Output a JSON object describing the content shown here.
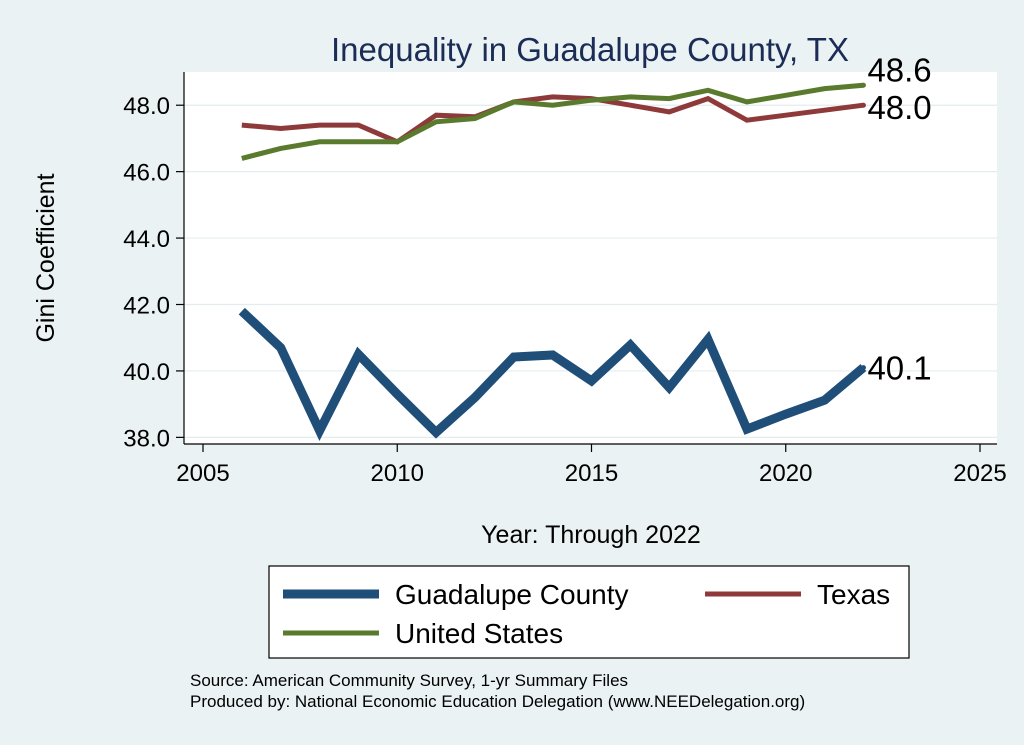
{
  "chart_data": {
    "type": "line",
    "title": "Inequality in Guadalupe County, TX",
    "xlabel": "Year: Through 2022",
    "ylabel": "Gini Coefficient",
    "xlim": [
      2005,
      2025
    ],
    "ylim": [
      37.8,
      49.0
    ],
    "x_ticks": [
      2005,
      2010,
      2015,
      2020,
      2025
    ],
    "y_ticks": [
      38.0,
      40.0,
      42.0,
      44.0,
      46.0,
      48.0
    ],
    "grid": true,
    "legend_position": "bottom",
    "series": [
      {
        "name": "Guadalupe County",
        "color": "#1f4e79",
        "x": [
          2006,
          2007,
          2008,
          2009,
          2010,
          2011,
          2012,
          2013,
          2014,
          2015,
          2016,
          2017,
          2018,
          2019,
          2020,
          2021,
          2022
        ],
        "values": [
          41.8,
          40.7,
          38.2,
          40.5,
          39.3,
          38.15,
          39.2,
          40.42,
          40.48,
          39.7,
          40.78,
          39.5,
          40.95,
          38.25,
          38.7,
          39.12,
          40.1
        ],
        "end_label": "40.1"
      },
      {
        "name": "Texas",
        "color": "#8f3a3a",
        "x": [
          2006,
          2007,
          2008,
          2009,
          2010,
          2011,
          2012,
          2013,
          2014,
          2015,
          2016,
          2017,
          2018,
          2019,
          2020,
          2021,
          2022
        ],
        "values": [
          47.4,
          47.3,
          47.4,
          47.4,
          46.9,
          47.7,
          47.65,
          48.1,
          48.25,
          48.2,
          48.0,
          47.8,
          48.2,
          47.55,
          47.7,
          47.85,
          48.0
        ],
        "end_label": "48.0"
      },
      {
        "name": "United States",
        "color": "#5a7a2e",
        "x": [
          2006,
          2007,
          2008,
          2009,
          2010,
          2011,
          2012,
          2013,
          2014,
          2015,
          2016,
          2017,
          2018,
          2019,
          2020,
          2021,
          2022
        ],
        "values": [
          46.4,
          46.7,
          46.9,
          46.9,
          46.9,
          47.5,
          47.6,
          48.1,
          48.0,
          48.15,
          48.25,
          48.2,
          48.45,
          48.1,
          48.3,
          48.5,
          48.6
        ],
        "end_label": "48.6"
      }
    ]
  },
  "source_lines": [
    "Source: American Community Survey, 1-yr Summary Files",
    "Produced by: National Economic Education Delegation (www.NEEDelegation.org)"
  ]
}
